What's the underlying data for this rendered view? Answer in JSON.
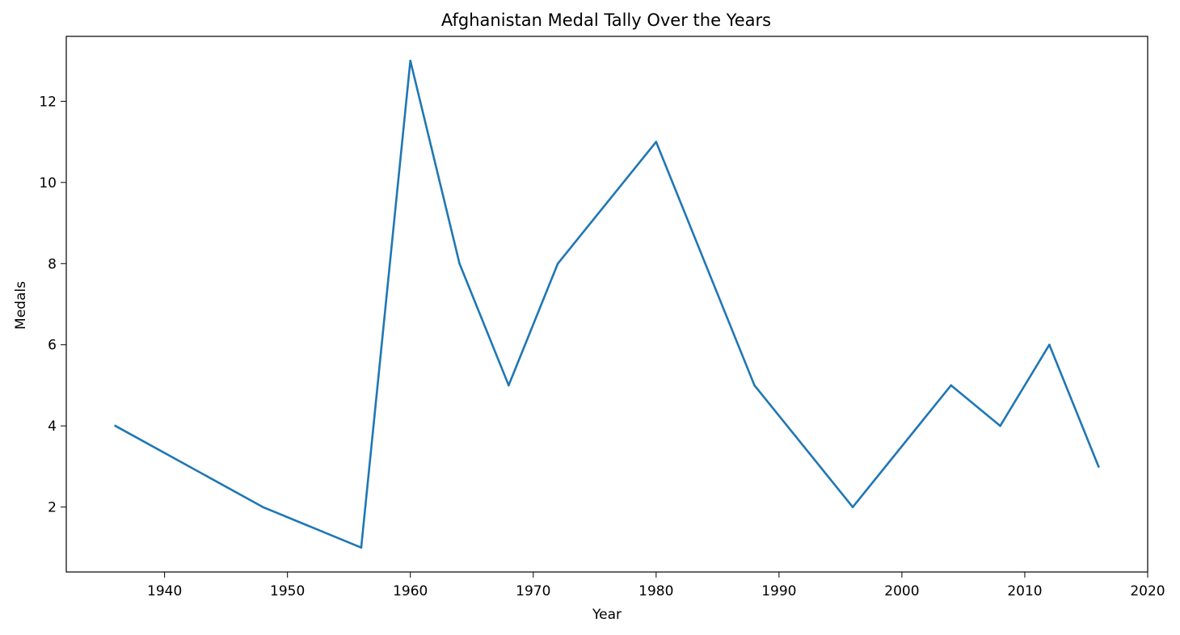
{
  "chart_data": {
    "type": "line",
    "title": "Afghanistan Medal Tally Over the Years",
    "xlabel": "Year",
    "ylabel": "Medals",
    "xlim": [
      1932,
      2020
    ],
    "ylim": [
      0.4,
      13.6
    ],
    "xticks": [
      1940,
      1950,
      1960,
      1970,
      1980,
      1990,
      2000,
      2010,
      2020
    ],
    "yticks": [
      2,
      4,
      6,
      8,
      10,
      12
    ],
    "grid": false,
    "series": [
      {
        "color": "#1f77b4",
        "x": [
          1936,
          1948,
          1956,
          1960,
          1964,
          1968,
          1972,
          1980,
          1988,
          1996,
          2004,
          2008,
          2012,
          2016
        ],
        "y": [
          4,
          2,
          1,
          13,
          8,
          5,
          8,
          11,
          5,
          2,
          5,
          4,
          6,
          3
        ]
      }
    ]
  }
}
